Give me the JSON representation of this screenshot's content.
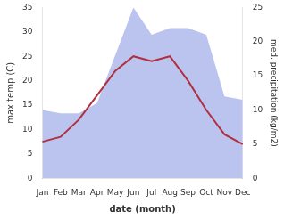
{
  "chart_data": {
    "type": "line",
    "categories": [
      "Jan",
      "Feb",
      "Mar",
      "Apr",
      "May",
      "Jun",
      "Jul",
      "Aug",
      "Sep",
      "Oct",
      "Nov",
      "Dec"
    ],
    "series": [
      {
        "type": "area",
        "color": "#bbc4ee",
        "axis": "y2",
        "values": [
          10.0,
          9.5,
          9.5,
          11.0,
          18.0,
          25.0,
          21.0,
          22.0,
          22.0,
          21.0,
          12.0,
          11.5
        ]
      },
      {
        "type": "line",
        "color": "#b03040",
        "values": [
          7.5,
          8.5,
          12.0,
          17.0,
          22.0,
          25.0,
          24.0,
          25.0,
          20.0,
          14.0,
          9.0,
          7.0
        ]
      }
    ],
    "xlabel": "date (month)",
    "ylabel": "max temp (C)",
    "y2label": "med. precipitation (kg/m2)",
    "ylim": [
      0,
      35
    ],
    "yticks": [
      0,
      5,
      10,
      15,
      20,
      25,
      30,
      35
    ],
    "y2lim": [
      0,
      25
    ],
    "y2ticks": [
      0,
      5,
      10,
      15,
      20,
      25
    ],
    "grid": false
  }
}
